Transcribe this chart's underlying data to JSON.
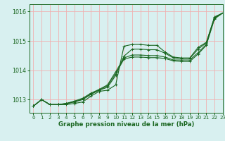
{
  "title": "Graphe pression niveau de la mer (hPa)",
  "bg_color": "#d8f0f0",
  "grid_color": "#f0b0b0",
  "line_color": "#1a6620",
  "xlim": [
    -0.5,
    23
  ],
  "ylim": [
    1012.55,
    1016.25
  ],
  "yticks": [
    1013,
    1014,
    1015,
    1016
  ],
  "xticks": [
    0,
    1,
    2,
    3,
    4,
    5,
    6,
    7,
    8,
    9,
    10,
    11,
    12,
    13,
    14,
    15,
    16,
    17,
    18,
    19,
    20,
    21,
    22,
    23
  ],
  "series": [
    [
      1012.78,
      1013.0,
      1012.83,
      1012.83,
      1012.83,
      1012.87,
      1012.92,
      1013.12,
      1013.28,
      1013.32,
      1013.5,
      1014.82,
      1014.88,
      1014.88,
      1014.85,
      1014.85,
      1014.62,
      1014.45,
      1014.42,
      1014.42,
      1014.78,
      1014.95,
      1015.82,
      1015.95
    ],
    [
      1012.78,
      1013.0,
      1012.83,
      1012.83,
      1012.86,
      1012.92,
      1013.0,
      1013.18,
      1013.32,
      1013.42,
      1013.82,
      1014.48,
      1014.72,
      1014.72,
      1014.7,
      1014.7,
      1014.58,
      1014.42,
      1014.4,
      1014.4,
      1014.72,
      1014.93,
      1015.8,
      1015.95
    ],
    [
      1012.78,
      1013.0,
      1012.83,
      1012.83,
      1012.87,
      1012.95,
      1013.05,
      1013.22,
      1013.35,
      1013.5,
      1013.95,
      1014.42,
      1014.52,
      1014.52,
      1014.5,
      1014.5,
      1014.45,
      1014.35,
      1014.35,
      1014.35,
      1014.6,
      1014.88,
      1015.78,
      1015.95
    ],
    [
      1012.78,
      1013.0,
      1012.83,
      1012.83,
      1012.87,
      1012.93,
      1013.02,
      1013.2,
      1013.33,
      1013.47,
      1013.88,
      1014.38,
      1014.45,
      1014.45,
      1014.43,
      1014.43,
      1014.4,
      1014.32,
      1014.3,
      1014.3,
      1014.55,
      1014.85,
      1015.75,
      1015.95
    ]
  ]
}
